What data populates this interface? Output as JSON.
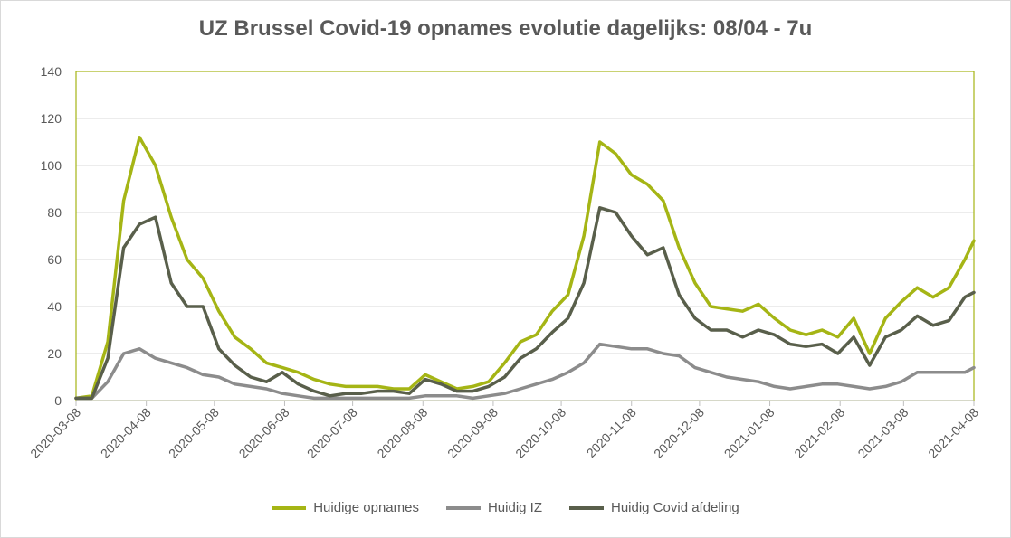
{
  "chart_data": {
    "type": "line",
    "title": "UZ Brussel Covid-19 opnames evolutie dagelijks: 08/04 - 7u",
    "xlabel": "",
    "ylabel": "",
    "ylim": [
      0,
      140
    ],
    "yticks": [
      "0",
      "20",
      "40",
      "60",
      "80",
      "100",
      "120",
      "140"
    ],
    "xticks": [
      "2020-03-08",
      "2020-04-08",
      "2020-05-08",
      "2020-06-08",
      "2020-07-08",
      "2020-08-08",
      "2020-09-08",
      "2020-10-08",
      "2020-11-08",
      "2020-12-08",
      "2021-01-08",
      "2021-02-08",
      "2021-03-08",
      "2021-04-08"
    ],
    "grid": true,
    "legend_position": "bottom",
    "x": [
      "2020-03-08",
      "2020-03-15",
      "2020-03-22",
      "2020-03-29",
      "2020-04-05",
      "2020-04-12",
      "2020-04-19",
      "2020-04-26",
      "2020-05-03",
      "2020-05-10",
      "2020-05-17",
      "2020-05-24",
      "2020-05-31",
      "2020-06-07",
      "2020-06-14",
      "2020-06-21",
      "2020-06-28",
      "2020-07-05",
      "2020-07-12",
      "2020-07-19",
      "2020-07-26",
      "2020-08-02",
      "2020-08-09",
      "2020-08-16",
      "2020-08-23",
      "2020-08-30",
      "2020-09-06",
      "2020-09-13",
      "2020-09-20",
      "2020-09-27",
      "2020-10-04",
      "2020-10-11",
      "2020-10-18",
      "2020-10-25",
      "2020-11-01",
      "2020-11-08",
      "2020-11-15",
      "2020-11-22",
      "2020-11-29",
      "2020-12-06",
      "2020-12-13",
      "2020-12-20",
      "2020-12-27",
      "2021-01-03",
      "2021-01-10",
      "2021-01-17",
      "2021-01-24",
      "2021-01-31",
      "2021-02-07",
      "2021-02-14",
      "2021-02-21",
      "2021-02-28",
      "2021-03-07",
      "2021-03-14",
      "2021-03-21",
      "2021-03-28",
      "2021-04-04",
      "2021-04-08"
    ],
    "series": [
      {
        "name": "Huidige opnames",
        "color": "#a5b515",
        "values": [
          1,
          2,
          25,
          85,
          112,
          100,
          78,
          60,
          52,
          38,
          27,
          22,
          16,
          14,
          12,
          9,
          7,
          6,
          6,
          6,
          5,
          5,
          11,
          8,
          5,
          6,
          8,
          16,
          25,
          28,
          38,
          45,
          70,
          110,
          105,
          96,
          92,
          85,
          65,
          50,
          40,
          39,
          38,
          41,
          35,
          30,
          28,
          30,
          27,
          35,
          20,
          35,
          42,
          48,
          44,
          48,
          60,
          68
        ]
      },
      {
        "name": "Huidig IZ",
        "color": "#8c8c8c",
        "values": [
          1,
          1,
          8,
          20,
          22,
          18,
          16,
          14,
          11,
          10,
          7,
          6,
          5,
          3,
          2,
          1,
          1,
          1,
          1,
          1,
          1,
          1,
          2,
          2,
          2,
          1,
          2,
          3,
          5,
          7,
          9,
          12,
          16,
          24,
          23,
          22,
          22,
          20,
          19,
          14,
          12,
          10,
          9,
          8,
          6,
          5,
          6,
          7,
          7,
          6,
          5,
          6,
          8,
          12,
          12,
          12,
          12,
          14
        ]
      },
      {
        "name": "Huidig Covid afdeling",
        "color": "#595f4b",
        "values": [
          1,
          1,
          18,
          65,
          75,
          78,
          50,
          40,
          40,
          22,
          15,
          10,
          8,
          12,
          7,
          4,
          2,
          3,
          3,
          4,
          4,
          3,
          9,
          7,
          4,
          4,
          6,
          10,
          18,
          22,
          29,
          35,
          50,
          82,
          80,
          70,
          62,
          65,
          45,
          35,
          30,
          30,
          27,
          30,
          28,
          24,
          23,
          24,
          20,
          27,
          15,
          27,
          30,
          36,
          32,
          34,
          44,
          46
        ]
      }
    ]
  }
}
